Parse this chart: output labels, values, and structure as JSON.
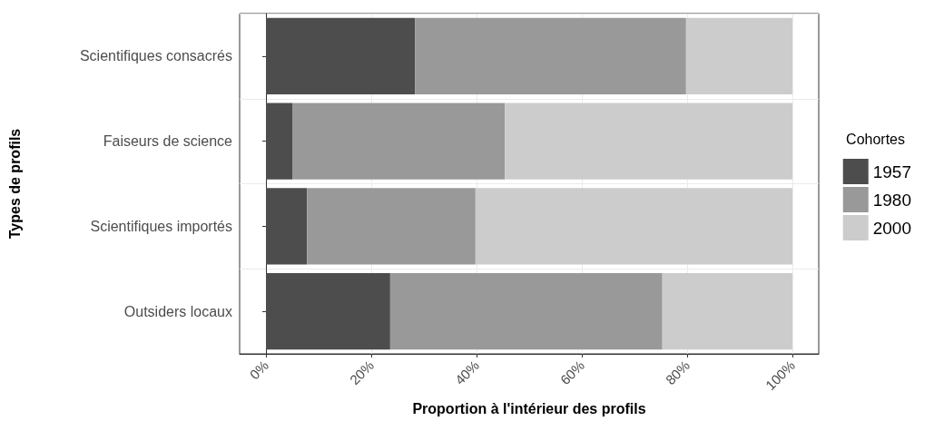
{
  "chart_data": {
    "type": "bar",
    "orientation": "horizontal",
    "stacked": true,
    "xlabel": "Proportion à l'intérieur des profils",
    "ylabel": "Types de profils",
    "legend_title": "Cohortes",
    "categories": [
      "Scientifiques consacrés",
      "Faiseurs de science",
      "Scientifiques importés",
      "Outsiders locaux"
    ],
    "series": [
      {
        "name": "1957",
        "color": "#4d4d4d",
        "values": [
          28.3,
          5.0,
          7.8,
          23.6
        ]
      },
      {
        "name": "1980",
        "color": "#999999",
        "values": [
          51.5,
          40.4,
          32.0,
          51.7
        ]
      },
      {
        "name": "2000",
        "color": "#cccccc",
        "values": [
          20.2,
          54.6,
          60.2,
          24.7
        ]
      }
    ],
    "xlim": [
      -5,
      105
    ],
    "xticks": [
      {
        "value": 0,
        "label": "0%"
      },
      {
        "value": 20,
        "label": "20%"
      },
      {
        "value": 40,
        "label": "40%"
      },
      {
        "value": 60,
        "label": "60%"
      },
      {
        "value": 80,
        "label": "80%"
      },
      {
        "value": 100,
        "label": "100%"
      }
    ],
    "grid": true,
    "legend": "right"
  }
}
